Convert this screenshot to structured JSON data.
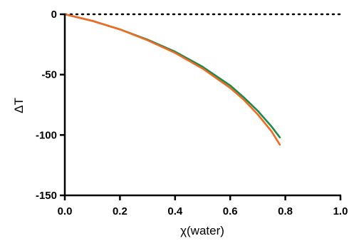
{
  "chart_data": {
    "type": "line",
    "xlabel": "χ(water)",
    "ylabel": "ΔT",
    "xlim": [
      0,
      1.0
    ],
    "ylim": [
      -150,
      0
    ],
    "x_ticks": [
      "0.0",
      "0.2",
      "0.4",
      "0.6",
      "0.8",
      "1.0"
    ],
    "y_ticks": [
      "0",
      "-50",
      "-100",
      "-150"
    ],
    "reference_line": {
      "y": 0,
      "style": "dotted"
    },
    "grid": false,
    "legend": "none",
    "series": [
      {
        "color": "#1b8a4c",
        "x": [
          0.0,
          0.1,
          0.2,
          0.3,
          0.4,
          0.5,
          0.6,
          0.65,
          0.7,
          0.75,
          0.78
        ],
        "y": [
          0,
          -5.5,
          -12.5,
          -21,
          -31,
          -43.5,
          -59,
          -69,
          -80,
          -93,
          -102
        ]
      },
      {
        "color": "#f06a22",
        "x": [
          0.0,
          0.1,
          0.2,
          0.3,
          0.4,
          0.5,
          0.6,
          0.65,
          0.7,
          0.75,
          0.78
        ],
        "y": [
          0,
          -5.5,
          -12.5,
          -21.5,
          -32,
          -45,
          -61,
          -71,
          -83,
          -97,
          -108
        ]
      }
    ]
  }
}
